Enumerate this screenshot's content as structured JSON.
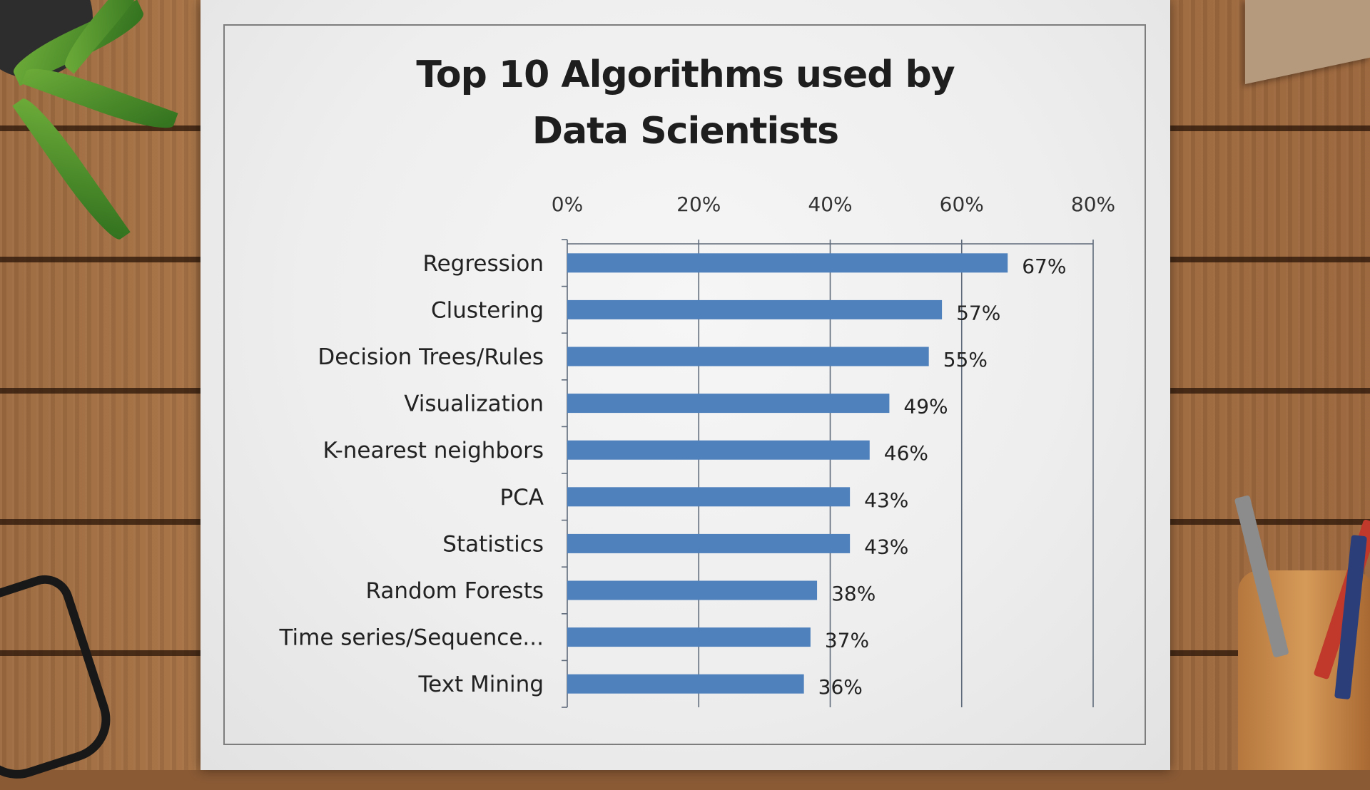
{
  "chart_data": {
    "type": "bar",
    "orientation": "horizontal",
    "title": [
      "Top 10 Algorithms used by",
      "Data Scientists"
    ],
    "categories": [
      "Regression",
      "Clustering",
      "Decision Trees/Rules",
      "Visualization",
      "K-nearest neighbors",
      "PCA",
      "Statistics",
      "Random Forests",
      "Time series/Sequence...",
      "Text Mining"
    ],
    "values": [
      67,
      57,
      55,
      49,
      46,
      43,
      43,
      38,
      37,
      36
    ],
    "value_labels": [
      "67%",
      "57%",
      "55%",
      "49%",
      "46%",
      "43%",
      "43%",
      "38%",
      "37%",
      "36%"
    ],
    "x_ticks": [
      0,
      20,
      40,
      60,
      80
    ],
    "x_tick_labels": [
      "0%",
      "20%",
      "40%",
      "60%",
      "80%"
    ],
    "xlim": [
      0,
      80
    ],
    "x_axis_position": "top",
    "grid": true,
    "bar_color": "#4f81bd"
  }
}
